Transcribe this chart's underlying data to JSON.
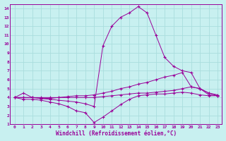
{
  "xlabel": "Windchill (Refroidissement éolien,°C)",
  "background_color": "#c8f0f0",
  "line_color": "#990099",
  "grid_color": "#b0e0e0",
  "xlim": [
    -0.5,
    23.5
  ],
  "ylim": [
    1,
    14.5
  ],
  "xticks": [
    0,
    1,
    2,
    3,
    4,
    5,
    6,
    7,
    8,
    9,
    10,
    11,
    12,
    13,
    14,
    15,
    16,
    17,
    18,
    19,
    20,
    21,
    22,
    23
  ],
  "yticks": [
    1,
    2,
    3,
    4,
    5,
    6,
    7,
    8,
    9,
    10,
    11,
    12,
    13,
    14
  ],
  "series": [
    {
      "x": [
        0,
        1,
        2,
        3,
        4,
        5,
        6,
        7,
        8,
        9,
        10,
        11,
        12,
        13,
        14,
        15,
        16,
        17,
        18,
        19,
        20,
        21,
        22,
        23
      ],
      "y": [
        4.0,
        4.5,
        4.0,
        3.9,
        3.8,
        3.7,
        3.6,
        3.5,
        3.3,
        3.0,
        9.8,
        12.0,
        13.0,
        13.5,
        14.2,
        13.5,
        11.0,
        8.5,
        7.5,
        7.0,
        6.8,
        5.0,
        4.5,
        4.2
      ]
    },
    {
      "x": [
        0,
        1,
        2,
        3,
        4,
        5,
        6,
        7,
        8,
        9,
        10,
        11,
        12,
        13,
        14,
        15,
        16,
        17,
        18,
        19,
        20,
        21,
        22,
        23
      ],
      "y": [
        4.0,
        4.0,
        4.0,
        3.9,
        3.9,
        4.0,
        4.1,
        4.2,
        4.2,
        4.3,
        4.5,
        4.7,
        5.0,
        5.2,
        5.5,
        5.7,
        6.0,
        6.3,
        6.5,
        6.8,
        5.2,
        5.0,
        4.5,
        4.3
      ]
    },
    {
      "x": [
        0,
        1,
        2,
        3,
        4,
        5,
        6,
        7,
        8,
        9,
        10,
        11,
        12,
        13,
        14,
        15,
        16,
        17,
        18,
        19,
        20,
        21,
        22,
        23
      ],
      "y": [
        4.0,
        4.0,
        4.0,
        4.0,
        4.0,
        4.0,
        4.0,
        4.0,
        4.0,
        4.0,
        4.1,
        4.2,
        4.3,
        4.4,
        4.5,
        4.5,
        4.6,
        4.7,
        4.8,
        5.0,
        5.2,
        5.0,
        4.3,
        4.2
      ]
    },
    {
      "x": [
        0,
        1,
        2,
        3,
        4,
        5,
        6,
        7,
        8,
        9,
        10,
        11,
        12,
        13,
        14,
        15,
        16,
        17,
        18,
        19,
        20,
        21,
        22,
        23
      ],
      "y": [
        4.0,
        3.8,
        3.8,
        3.7,
        3.5,
        3.3,
        3.0,
        2.5,
        2.3,
        1.2,
        1.8,
        2.5,
        3.2,
        3.8,
        4.2,
        4.3,
        4.4,
        4.4,
        4.5,
        4.6,
        4.5,
        4.3,
        4.2,
        4.2
      ]
    }
  ]
}
